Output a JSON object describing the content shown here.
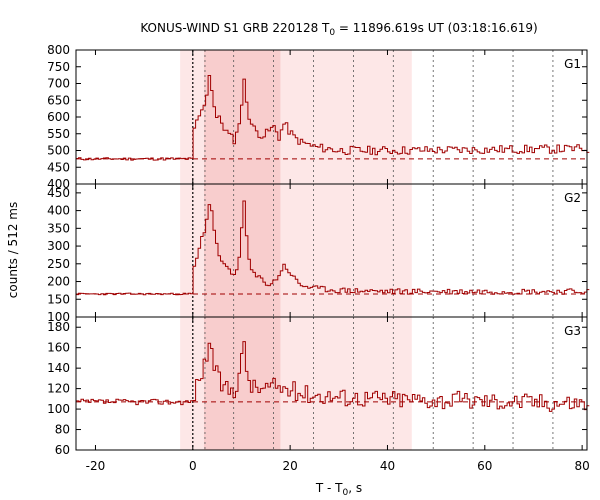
{
  "chart_data": {
    "type": "line",
    "title": "KONUS-WIND S1 GRB 220128 T",
    "title_sub": "0",
    "title_rest": " = 11896.619s UT (03:18:16.619)",
    "xlabel": "T - T",
    "xlabel_sub": "0",
    "xlabel_rest": ", s",
    "ylabel": "counts / 512 ms",
    "xlim": [
      -24,
      81
    ],
    "x_ticks": [
      -20,
      0,
      20,
      40,
      60,
      80
    ],
    "bin_width": 0.512,
    "shaded_regions": [
      {
        "from": -2.6,
        "to": 45.0,
        "shade": "light"
      },
      {
        "from": 2.3,
        "to": 18.0,
        "shade": "dark"
      }
    ],
    "trigger_time": 0,
    "interval_markers": [
      2.5,
      8.4,
      16.6,
      24.8,
      33.0,
      41.2,
      49.4,
      57.6,
      65.8,
      74.0
    ],
    "colors": {
      "curve": "#a00000",
      "shade_light": "#fde7e7",
      "shade_dark": "#f8cdcd"
    },
    "panels": [
      {
        "label": "G1",
        "ylim": [
          400,
          800
        ],
        "y_ticks": [
          400,
          450,
          500,
          550,
          600,
          650,
          700,
          750,
          800
        ],
        "background": 475,
        "rise": [
          [
            0.0,
            555
          ],
          [
            0.8,
            600
          ],
          [
            1.5,
            610
          ],
          [
            2.3,
            650
          ],
          [
            3.0,
            700
          ],
          [
            3.2,
            735
          ],
          [
            3.8,
            670
          ],
          [
            4.5,
            600
          ],
          [
            5.5,
            590
          ],
          [
            6.5,
            560
          ],
          [
            7.5,
            540
          ],
          [
            8.5,
            530
          ],
          [
            9.2,
            580
          ],
          [
            9.8,
            640
          ],
          [
            10.3,
            705
          ],
          [
            10.8,
            650
          ],
          [
            11.5,
            590
          ],
          [
            12.5,
            560
          ],
          [
            13.5,
            550
          ],
          [
            14.5,
            545
          ],
          [
            15.5,
            560
          ],
          [
            16.5,
            570
          ],
          [
            17.5,
            540
          ],
          [
            18.5,
            580
          ],
          [
            19.5,
            560
          ],
          [
            20.5,
            540
          ],
          [
            22.0,
            525
          ],
          [
            25.0,
            510
          ],
          [
            30.0,
            500
          ],
          [
            40.0,
            500
          ],
          [
            80.0,
            505
          ]
        ],
        "noise": 13,
        "seed": 11
      },
      {
        "label": "G2",
        "ylim": [
          100,
          475
        ],
        "y_ticks": [
          100,
          150,
          200,
          250,
          300,
          350,
          400,
          450
        ],
        "background": 165,
        "rise": [
          [
            0.0,
            240
          ],
          [
            0.8,
            270
          ],
          [
            1.5,
            320
          ],
          [
            2.3,
            350
          ],
          [
            2.9,
            400
          ],
          [
            3.2,
            425
          ],
          [
            3.8,
            390
          ],
          [
            4.5,
            310
          ],
          [
            5.5,
            260
          ],
          [
            6.5,
            240
          ],
          [
            7.5,
            225
          ],
          [
            8.5,
            215
          ],
          [
            9.2,
            260
          ],
          [
            9.8,
            360
          ],
          [
            10.3,
            420
          ],
          [
            10.8,
            330
          ],
          [
            11.5,
            240
          ],
          [
            12.5,
            215
          ],
          [
            13.5,
            210
          ],
          [
            14.5,
            200
          ],
          [
            15.5,
            190
          ],
          [
            16.5,
            200
          ],
          [
            17.5,
            220
          ],
          [
            18.5,
            245
          ],
          [
            19.5,
            230
          ],
          [
            20.5,
            210
          ],
          [
            22.0,
            190
          ],
          [
            25.0,
            180
          ],
          [
            30.0,
            175
          ],
          [
            40.0,
            172
          ],
          [
            80.0,
            172
          ]
        ],
        "noise": 8,
        "seed": 23
      },
      {
        "label": "G3",
        "ylim": [
          60,
          190
        ],
        "y_ticks": [
          60,
          80,
          100,
          120,
          140,
          160,
          180
        ],
        "background": 107,
        "rise": [
          [
            0.0,
            115
          ],
          [
            0.8,
            125
          ],
          [
            1.5,
            135
          ],
          [
            2.3,
            145
          ],
          [
            2.9,
            160
          ],
          [
            3.2,
            170
          ],
          [
            3.8,
            150
          ],
          [
            4.5,
            135
          ],
          [
            5.5,
            125
          ],
          [
            6.5,
            120
          ],
          [
            7.5,
            118
          ],
          [
            8.5,
            120
          ],
          [
            9.2,
            135
          ],
          [
            9.8,
            150
          ],
          [
            10.3,
            160
          ],
          [
            10.8,
            140
          ],
          [
            11.5,
            125
          ],
          [
            12.5,
            120
          ],
          [
            14.5,
            120
          ],
          [
            16.5,
            122
          ],
          [
            18.5,
            120
          ],
          [
            20.5,
            118
          ],
          [
            22.0,
            116
          ],
          [
            25.0,
            114
          ],
          [
            30.0,
            112
          ],
          [
            40.0,
            110
          ],
          [
            80.0,
            106
          ]
        ],
        "noise": 9,
        "seed": 37
      }
    ]
  }
}
